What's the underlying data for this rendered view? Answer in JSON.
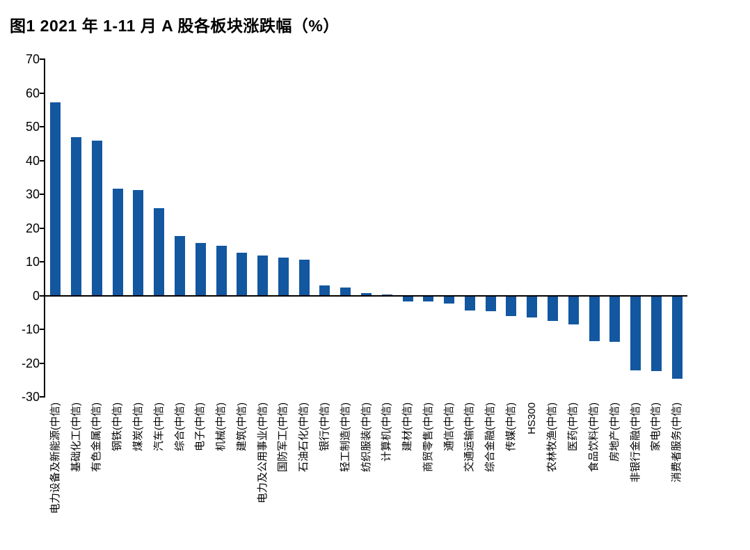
{
  "header": {
    "title": "图1  2021 年 1-11 月 A 股各板块涨跌幅（%）"
  },
  "colors": {
    "bar": "#1257A0",
    "rule": "#2E3157",
    "axis": "#000000"
  },
  "chart_data": {
    "type": "bar",
    "title": "图1 2021 年 1-11 月 A 股各板块涨跌幅（%）",
    "xlabel": "",
    "ylabel": "",
    "ylim": [
      -30,
      70
    ],
    "yticks": [
      70,
      60,
      50,
      40,
      30,
      20,
      10,
      0,
      -10,
      -20,
      -30
    ],
    "grid": false,
    "legend": "none",
    "bar_color": "#1257A0",
    "categories": [
      "电力设备及新能源(中信)",
      "基础化工(中信)",
      "有色金属(中信)",
      "钢铁(中信)",
      "煤炭(中信)",
      "汽车(中信)",
      "综合(中信)",
      "电子(中信)",
      "机械(中信)",
      "建筑(中信)",
      "电力及公用事业(中信)",
      "国防军工(中信)",
      "石油石化(中信)",
      "银行(中信)",
      "轻工制造(中信)",
      "纺织服装(中信)",
      "计算机(中信)",
      "建材(中信)",
      "商贸零售(中信)",
      "通信(中信)",
      "交通运输(中信)",
      "综合金融(中信)",
      "传媒(中信)",
      "HS300",
      "农林牧渔(中信)",
      "医药(中信)",
      "食品饮料(中信)",
      "房地产(中信)",
      "非银行金融(中信)",
      "家电(中信)",
      "消费者服务(中信)"
    ],
    "values": [
      57.2,
      47.0,
      45.8,
      31.6,
      31.2,
      25.8,
      17.6,
      15.6,
      14.7,
      12.6,
      11.8,
      11.2,
      10.7,
      3.0,
      2.4,
      0.8,
      0.4,
      -1.5,
      -1.6,
      -2.2,
      -4.2,
      -4.4,
      -5.8,
      -6.3,
      -7.3,
      -8.4,
      -13.3,
      -13.6,
      -22.0,
      -22.1,
      -24.5
    ]
  }
}
